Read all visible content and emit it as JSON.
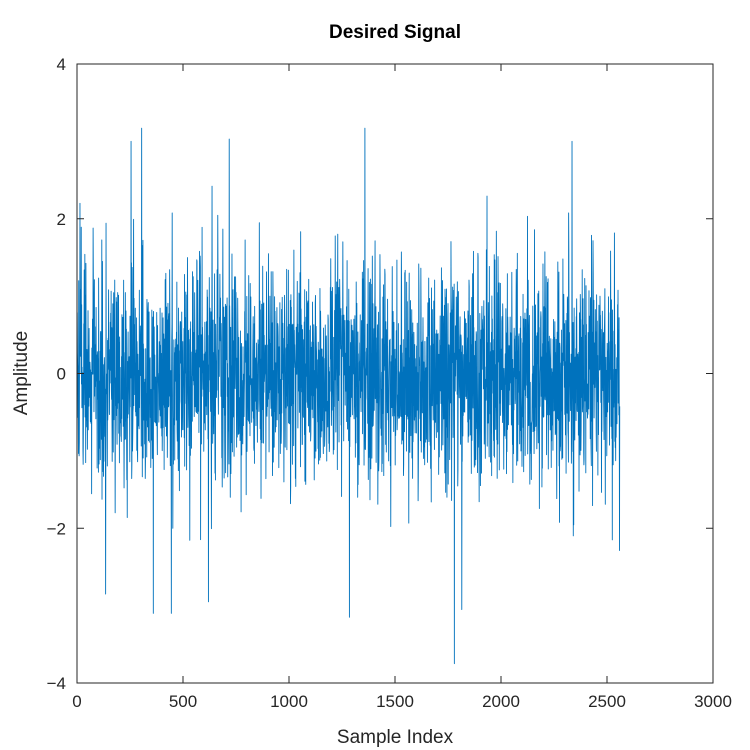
{
  "chart_data": {
    "type": "line",
    "title": "Desired Signal",
    "xlabel": "Sample Index",
    "ylabel": "Amplitude",
    "xlim": [
      0,
      3000
    ],
    "ylim": [
      -4,
      4
    ],
    "xticks": [
      0,
      500,
      1000,
      1500,
      2000,
      2500,
      3000
    ],
    "yticks": [
      -4,
      -2,
      0,
      2,
      4
    ],
    "xtick_labels": [
      "0",
      "500",
      "1000",
      "1500",
      "2000",
      "2500",
      "3000"
    ],
    "ytick_labels": [
      "−4",
      "−2",
      "0",
      "2",
      "4"
    ],
    "grid": false,
    "legend": "none",
    "series": [
      {
        "x_start": 1,
        "x_end": 2560,
        "num_points": 2560,
        "distribution": "white gaussian noise, mean 0, std 0.7",
        "approx_max": 3.2,
        "approx_min": -3.75,
        "color": "#0072BD",
        "notable_points": [
          {
            "x": 14,
            "y": 2.2
          },
          {
            "x": 135,
            "y": -2.85
          },
          {
            "x": 255,
            "y": 3.0
          },
          {
            "x": 305,
            "y": 3.17
          },
          {
            "x": 360,
            "y": -3.1
          },
          {
            "x": 445,
            "y": -3.1
          },
          {
            "x": 620,
            "y": -2.95
          },
          {
            "x": 718,
            "y": 3.03
          },
          {
            "x": 1285,
            "y": -3.15
          },
          {
            "x": 1358,
            "y": 3.17
          },
          {
            "x": 1780,
            "y": -3.75
          },
          {
            "x": 1815,
            "y": -3.05
          },
          {
            "x": 2335,
            "y": 3.0
          },
          {
            "x": 2525,
            "y": -2.15
          }
        ]
      }
    ]
  }
}
